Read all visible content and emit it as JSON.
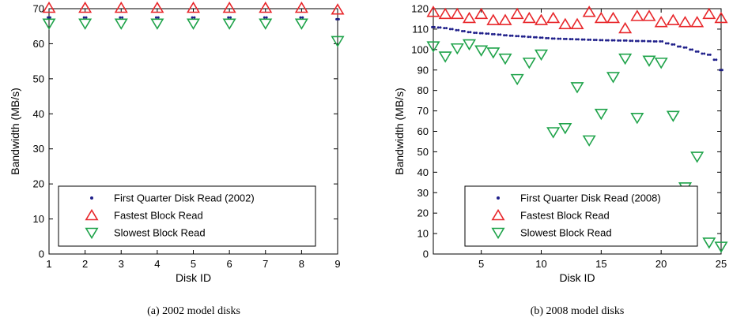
{
  "chart_data": [
    {
      "type": "scatter",
      "caption": "(a)  2002 model disks",
      "xlabel": "Disk ID",
      "ylabel": "Bandwidth (MB/s)",
      "xlim": [
        1,
        9
      ],
      "ylim": [
        0,
        70
      ],
      "xticks": [
        1,
        2,
        3,
        4,
        5,
        6,
        7,
        8,
        9
      ],
      "yticks": [
        0,
        10,
        20,
        30,
        40,
        50,
        60,
        70
      ],
      "legend_position": "bottom",
      "series": [
        {
          "name": "First Quarter Disk Read (2002)",
          "marker": "dot",
          "color": "#1f1f8a",
          "x": [
            1,
            2,
            3,
            4,
            5,
            6,
            7,
            8,
            9
          ],
          "y": [
            67.5,
            67.5,
            67.5,
            67.5,
            67.5,
            67.5,
            67.5,
            67.5,
            67
          ]
        },
        {
          "name": "Fastest Block Read",
          "marker": "triangle-up",
          "color": "#e8262a",
          "x": [
            1,
            2,
            3,
            4,
            5,
            6,
            7,
            8,
            9
          ],
          "y": [
            70,
            70,
            70,
            70,
            70,
            70,
            70,
            70,
            69.5
          ]
        },
        {
          "name": "Slowest Block Read",
          "marker": "triangle-down",
          "color": "#1fa34a",
          "x": [
            1,
            2,
            3,
            4,
            5,
            6,
            7,
            8,
            9
          ],
          "y": [
            66,
            66,
            66,
            66,
            66,
            66,
            66,
            66,
            61
          ]
        }
      ]
    },
    {
      "type": "scatter",
      "caption": "(b)  2008 model disks",
      "xlabel": "Disk ID",
      "ylabel": "Bandwidth (MB/s)",
      "xlim": [
        1,
        25
      ],
      "ylim": [
        0,
        120
      ],
      "xticks": [
        5,
        10,
        15,
        20,
        25
      ],
      "yticks": [
        0,
        10,
        20,
        30,
        40,
        50,
        60,
        70,
        80,
        90,
        100,
        110,
        120
      ],
      "legend_position": "bottom",
      "series": [
        {
          "name": "First Quarter Disk Read (2008)",
          "marker": "dot",
          "color": "#1f1f8a",
          "x": [
            1,
            1.5,
            2,
            2.5,
            3,
            3.5,
            4,
            4.5,
            5,
            5.5,
            6,
            6.5,
            7,
            7.5,
            8,
            8.5,
            9,
            9.5,
            10,
            10.5,
            11,
            11.5,
            12,
            12.5,
            13,
            13.5,
            14,
            14.5,
            15,
            15.5,
            16,
            16.5,
            17,
            17.5,
            18,
            18.5,
            19,
            19.5,
            20,
            20.5,
            21,
            21.5,
            22,
            22.5,
            23,
            23.5,
            24,
            24.5,
            25
          ],
          "y": [
            111,
            110.8,
            110.5,
            110,
            109.5,
            109,
            108.5,
            108.2,
            108,
            107.8,
            107.5,
            107.3,
            107,
            106.8,
            106.6,
            106.4,
            106.2,
            106,
            105.8,
            105.6,
            105.4,
            105.3,
            105.2,
            105.1,
            105,
            104.9,
            104.8,
            104.7,
            104.6,
            104.5,
            104.5,
            104.4,
            104.4,
            104.3,
            104.2,
            104.2,
            104.1,
            104,
            104,
            103,
            102.5,
            101.5,
            101,
            100,
            99,
            98,
            97.5,
            95,
            90
          ]
        },
        {
          "name": "Fastest Block Read",
          "marker": "triangle-up",
          "color": "#e8262a",
          "x": [
            1,
            2,
            3,
            4,
            5,
            6,
            7,
            8,
            9,
            10,
            11,
            12,
            13,
            14,
            15,
            16,
            17,
            18,
            19,
            20,
            21,
            22,
            23,
            24,
            25
          ],
          "y": [
            118,
            117,
            117,
            115,
            117,
            114,
            114,
            117,
            115,
            114,
            115,
            112,
            112,
            118,
            115,
            115,
            110,
            116,
            116,
            113,
            114,
            113,
            113,
            117,
            115
          ]
        },
        {
          "name": "Slowest Block Read",
          "marker": "triangle-down",
          "color": "#1fa34a",
          "x": [
            1,
            2,
            3,
            4,
            5,
            6,
            7,
            8,
            9,
            10,
            11,
            12,
            13,
            14,
            15,
            16,
            17,
            18,
            19,
            20,
            21,
            22,
            23,
            24,
            25
          ],
          "y": [
            102,
            97,
            101,
            103,
            100,
            99,
            96,
            86,
            94,
            98,
            60,
            62,
            82,
            56,
            69,
            87,
            96,
            67,
            95,
            94,
            68,
            33,
            48,
            6,
            4
          ]
        }
      ]
    }
  ]
}
